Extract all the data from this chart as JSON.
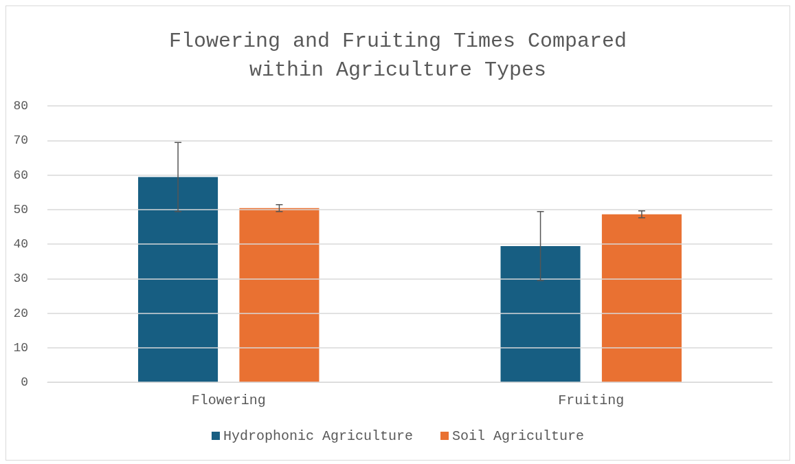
{
  "chart_data": {
    "type": "bar",
    "title": "Flowering and Fruiting Times Compared\nwithin Agriculture Types",
    "categories": [
      "Flowering",
      "Fruiting"
    ],
    "series": [
      {
        "name": "Hydrophonic Agriculture",
        "color": "#175e82",
        "values": [
          59.4,
          39.4
        ],
        "errors": [
          10,
          10
        ]
      },
      {
        "name": "Soil Agriculture",
        "color": "#e97132",
        "values": [
          50.4,
          48.6
        ],
        "errors": [
          1,
          1
        ]
      }
    ],
    "ylim": [
      0,
      80
    ],
    "yticks": [
      0,
      10,
      20,
      30,
      40,
      50,
      60,
      70,
      80
    ],
    "grid": "y",
    "legend": "bottom"
  }
}
